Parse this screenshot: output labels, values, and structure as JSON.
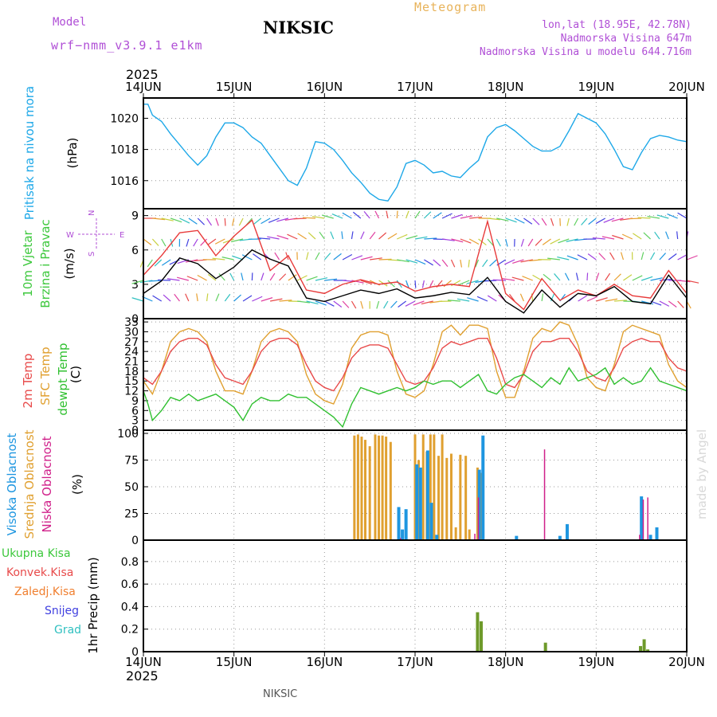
{
  "header": {
    "model_label": "Model",
    "model_name": "wrf−nmm_v3.9.1 e1km",
    "station": "NIKSIC",
    "meteogram_title": "Meteogram",
    "lonlat": "lon,lat (18.95E, 42.78N)",
    "elevation": "Nadmorska Visina 647m",
    "model_elevation": "Nadmorska Visina u modelu 644.716m",
    "year_top": "2025",
    "year_bottom": "2025",
    "footer_station": "NIKSIC",
    "watermark": "made by Angel"
  },
  "colors": {
    "pressure": "#1ea8e8",
    "wind_speed": "#000000",
    "wind_gust": "#e83a3a",
    "temp_2m": "#e84a4a",
    "temp_sfc": "#e0a030",
    "dewpoint": "#30c030",
    "cloud_high": "#1e96e0",
    "cloud_mid": "#e0a030",
    "cloud_low": "#d0208a",
    "precip_total": "#3cc83c",
    "precip_conv": "#e84a4a",
    "precip_strat": "#f07f2f",
    "snow": "#4040e0",
    "hail": "#30c0c0",
    "compass": "#b04fd6"
  },
  "chart_data": [
    {
      "type": "line",
      "panel": "pressure",
      "ylabel_lines": [
        "Pritisak na nivou mora",
        "(hPa)"
      ],
      "x_ticks": [
        "14JUN",
        "15JUN",
        "16JUN",
        "17JUN",
        "18JUN",
        "19JUN",
        "20JUN"
      ],
      "ylim": [
        1014.2,
        1021.3
      ],
      "y_ticks": [
        1016,
        1018,
        1020
      ],
      "grid": true,
      "series": [
        {
          "name": "Pritisak na nivou mora",
          "x": [
            0,
            0.05,
            0.1,
            0.2,
            0.3,
            0.4,
            0.5,
            0.6,
            0.7,
            0.8,
            0.9,
            1.0,
            1.1,
            1.2,
            1.3,
            1.4,
            1.5,
            1.6,
            1.7,
            1.8,
            1.9,
            2.0,
            2.1,
            2.2,
            2.3,
            2.4,
            2.5,
            2.6,
            2.7,
            2.8,
            2.9,
            3.0,
            3.1,
            3.2,
            3.3,
            3.4,
            3.5,
            3.6,
            3.7,
            3.8,
            3.9,
            4.0,
            4.1,
            4.2,
            4.3,
            4.4,
            4.5,
            4.6,
            4.7,
            4.8,
            4.9,
            5.0,
            5.1,
            5.2,
            5.3,
            5.4,
            5.5,
            5.6,
            5.7,
            5.8,
            5.9,
            6.0
          ],
          "y": [
            1020.9,
            1020.9,
            1020.2,
            1019.8,
            1019.0,
            1018.3,
            1017.6,
            1017.0,
            1017.6,
            1018.8,
            1019.7,
            1019.7,
            1019.4,
            1018.8,
            1018.4,
            1017.6,
            1016.8,
            1016.0,
            1015.7,
            1016.8,
            1018.5,
            1018.4,
            1018.0,
            1017.3,
            1016.5,
            1015.9,
            1015.2,
            1014.8,
            1014.7,
            1015.6,
            1017.1,
            1017.3,
            1017.0,
            1016.5,
            1016.6,
            1016.3,
            1016.2,
            1016.8,
            1017.3,
            1018.8,
            1019.4,
            1019.6,
            1019.2,
            1018.7,
            1018.2,
            1017.9,
            1017.9,
            1018.2,
            1019.2,
            1020.3,
            1020.0,
            1019.7,
            1019.0,
            1018.0,
            1016.9,
            1016.7,
            1017.8,
            1018.7,
            1018.9,
            1018.8,
            1018.6,
            1018.5
          ]
        }
      ]
    },
    {
      "type": "line",
      "panel": "wind",
      "ylabel_lines": [
        "10m Vjetar",
        "Brzina i Pravac",
        "(m/s)"
      ],
      "compass": {
        "north": "N",
        "south": "S",
        "west": "W",
        "east": "E"
      },
      "ylim": [
        0,
        9.6
      ],
      "y_ticks": [
        0,
        3,
        6,
        9
      ],
      "grid": true,
      "series": [
        {
          "name": "speed",
          "x": [
            0,
            0.2,
            0.4,
            0.6,
            0.8,
            1.0,
            1.2,
            1.4,
            1.6,
            1.8,
            2.0,
            2.2,
            2.4,
            2.6,
            2.8,
            3.0,
            3.2,
            3.4,
            3.6,
            3.8,
            4.0,
            4.2,
            4.4,
            4.6,
            4.8,
            5.0,
            5.2,
            5.4,
            5.6,
            5.8,
            6.0
          ],
          "y": [
            2.2,
            3.3,
            5.3,
            4.8,
            3.5,
            4.5,
            6.0,
            5.2,
            4.6,
            1.8,
            1.5,
            2.0,
            2.5,
            2.2,
            2.6,
            1.8,
            2.0,
            2.3,
            2.1,
            3.6,
            1.5,
            0.5,
            2.5,
            1.0,
            2.2,
            2.0,
            2.8,
            1.5,
            1.3,
            3.8,
            1.8
          ]
        },
        {
          "name": "gust",
          "x": [
            0,
            0.2,
            0.4,
            0.6,
            0.8,
            1.0,
            1.2,
            1.4,
            1.6,
            1.8,
            2.0,
            2.2,
            2.4,
            2.6,
            2.8,
            3.0,
            3.2,
            3.4,
            3.6,
            3.8,
            4.0,
            4.2,
            4.4,
            4.6,
            4.8,
            5.0,
            5.2,
            5.4,
            5.6,
            5.8,
            6.0
          ],
          "y": [
            3.8,
            5.5,
            7.5,
            7.7,
            5.5,
            7.2,
            8.6,
            4.2,
            5.5,
            2.5,
            2.2,
            3.0,
            3.4,
            3.0,
            3.2,
            2.4,
            2.8,
            3.0,
            2.8,
            8.5,
            2.2,
            0.8,
            3.5,
            1.6,
            2.5,
            2.0,
            3.0,
            2.0,
            1.8,
            4.2,
            2.2
          ]
        }
      ]
    },
    {
      "type": "line",
      "panel": "temperature",
      "ylabel_lines": [
        "2m Temp",
        "SFC Temp",
        "dewpt Temp",
        "(C)"
      ],
      "ylim": [
        0,
        34
      ],
      "y_ticks": [
        0,
        3,
        6,
        9,
        12,
        15,
        18,
        21,
        24,
        27,
        30,
        33
      ],
      "grid": true,
      "series": [
        {
          "name": "2m Temp",
          "x": [
            0,
            0.1,
            0.2,
            0.3,
            0.4,
            0.5,
            0.6,
            0.7,
            0.8,
            0.9,
            1.0,
            1.1,
            1.2,
            1.3,
            1.4,
            1.5,
            1.6,
            1.7,
            1.8,
            1.9,
            2.0,
            2.1,
            2.2,
            2.3,
            2.4,
            2.5,
            2.6,
            2.7,
            2.8,
            2.9,
            3.0,
            3.1,
            3.2,
            3.3,
            3.4,
            3.5,
            3.6,
            3.7,
            3.8,
            3.9,
            4.0,
            4.1,
            4.2,
            4.3,
            4.4,
            4.5,
            4.6,
            4.7,
            4.8,
            4.9,
            5.0,
            5.1,
            5.2,
            5.3,
            5.4,
            5.5,
            5.6,
            5.7,
            5.8,
            5.9,
            6.0
          ],
          "y": [
            16,
            14,
            18,
            24,
            27,
            28,
            28,
            26,
            20,
            16,
            15,
            14,
            18,
            24,
            27,
            28,
            28,
            26,
            20,
            15,
            13,
            12,
            16,
            22,
            25,
            26,
            26,
            25,
            20,
            15,
            14,
            15,
            19,
            25,
            27,
            26,
            27,
            28,
            28,
            22,
            14,
            13,
            17,
            24,
            27,
            27,
            28,
            28,
            24,
            18,
            16,
            15,
            19,
            25,
            27,
            28,
            27,
            27,
            22,
            19,
            18
          ]
        },
        {
          "name": "SFC Temp",
          "x": [
            0,
            0.1,
            0.2,
            0.3,
            0.4,
            0.5,
            0.6,
            0.7,
            0.8,
            0.9,
            1.0,
            1.1,
            1.2,
            1.3,
            1.4,
            1.5,
            1.6,
            1.7,
            1.8,
            1.9,
            2.0,
            2.1,
            2.2,
            2.3,
            2.4,
            2.5,
            2.6,
            2.7,
            2.8,
            2.9,
            3.0,
            3.1,
            3.2,
            3.3,
            3.4,
            3.5,
            3.6,
            3.7,
            3.8,
            3.9,
            4.0,
            4.1,
            4.2,
            4.3,
            4.4,
            4.5,
            4.6,
            4.7,
            4.8,
            4.9,
            5.0,
            5.1,
            5.2,
            5.3,
            5.4,
            5.5,
            5.6,
            5.7,
            5.8,
            5.9,
            6.0
          ],
          "y": [
            15,
            11,
            18,
            27,
            30,
            31,
            30,
            27,
            18,
            12,
            12,
            11,
            18,
            27,
            30,
            31,
            30,
            27,
            17,
            11,
            9,
            8,
            14,
            25,
            29,
            30,
            30,
            29,
            18,
            11,
            10,
            12,
            20,
            30,
            32,
            29,
            32,
            32,
            31,
            18,
            10,
            10,
            18,
            28,
            31,
            30,
            33,
            32,
            26,
            16,
            13,
            12,
            20,
            30,
            32,
            31,
            30,
            29,
            20,
            15,
            13
          ]
        },
        {
          "name": "dewpt Temp",
          "x": [
            0,
            0.05,
            0.1,
            0.2,
            0.3,
            0.4,
            0.5,
            0.6,
            0.7,
            0.8,
            0.9,
            1.0,
            1.1,
            1.2,
            1.3,
            1.4,
            1.5,
            1.6,
            1.7,
            1.8,
            1.9,
            2.0,
            2.1,
            2.2,
            2.3,
            2.4,
            2.5,
            2.6,
            2.7,
            2.8,
            2.9,
            3.0,
            3.1,
            3.2,
            3.3,
            3.4,
            3.5,
            3.6,
            3.7,
            3.8,
            3.9,
            4.0,
            4.1,
            4.2,
            4.3,
            4.4,
            4.5,
            4.6,
            4.7,
            4.8,
            4.9,
            5.0,
            5.1,
            5.2,
            5.3,
            5.4,
            5.5,
            5.6,
            5.7,
            5.8,
            5.9,
            6.0
          ],
          "y": [
            12,
            8,
            3,
            6,
            10,
            9,
            11,
            9,
            10,
            11,
            9,
            7,
            3,
            8,
            10,
            9,
            9,
            11,
            10,
            10,
            8,
            6,
            4,
            1,
            8,
            13,
            12,
            11,
            12,
            13,
            12,
            13,
            15,
            14,
            15,
            15,
            13,
            15,
            17,
            12,
            11,
            14,
            16,
            17,
            15,
            13,
            16,
            14,
            19,
            15,
            16,
            17,
            19,
            14,
            16,
            14,
            15,
            19,
            15,
            14,
            13,
            12
          ]
        }
      ]
    },
    {
      "type": "bar",
      "panel": "clouds",
      "ylabel_lines": [
        "Visoka Oblacnost",
        "Srednja Oblacnost",
        "Niska Oblacnost",
        "(%)"
      ],
      "ylim": [
        0,
        103
      ],
      "y_ticks": [
        0,
        25,
        50,
        75,
        100
      ],
      "grid": true,
      "series": [
        {
          "name": "Srednja Oblacnost",
          "x": [
            2.33,
            2.37,
            2.41,
            2.45,
            2.5,
            2.56,
            2.6,
            2.64,
            2.68,
            2.73,
            3.0,
            3.04,
            3.09,
            3.13,
            3.17,
            3.21,
            3.26,
            3.3,
            3.35,
            3.4,
            3.45,
            3.5,
            3.56,
            3.6,
            3.69,
            3.73
          ],
          "values": [
            98,
            99,
            97,
            94,
            88,
            99,
            98,
            98,
            97,
            92,
            99,
            75,
            99,
            83,
            99,
            99,
            79,
            99,
            77,
            81,
            12,
            80,
            79,
            10,
            68,
            63
          ]
        },
        {
          "name": "Visoka Oblacnost",
          "x": [
            2.82,
            2.86,
            2.9,
            3.02,
            3.06,
            3.14,
            3.18,
            3.24,
            3.71,
            3.75,
            4.12,
            4.6,
            4.68,
            5.5,
            5.6,
            5.67
          ],
          "values": [
            31,
            10,
            29,
            71,
            68,
            84,
            35,
            5,
            66,
            98,
            4,
            4,
            15,
            41,
            5,
            12
          ]
        },
        {
          "name": "Niska Oblacnost",
          "x": [
            2.84,
            3.66,
            3.7,
            4.43,
            5.48,
            5.52,
            5.57
          ],
          "values": [
            2,
            6,
            40,
            85,
            5,
            38,
            40
          ]
        }
      ]
    },
    {
      "type": "bar",
      "panel": "precip",
      "ylabel_lines": [
        "1hr Precip (mm)"
      ],
      "legend": [
        "Ukupna Kisa",
        "Konvek.Kisa",
        "Zaledj.Kisa",
        "Snijeg",
        "Grad"
      ],
      "ylim": [
        0,
        0.99
      ],
      "y_ticks": [
        0,
        0.2,
        0.4,
        0.6,
        0.8
      ],
      "grid": true,
      "series": [
        {
          "name": "Ukupna Kisa",
          "x": [
            3.69,
            3.73,
            4.44,
            5.49,
            5.53,
            5.57
          ],
          "values": [
            0.35,
            0.27,
            0.08,
            0.05,
            0.11,
            0.02
          ]
        }
      ]
    }
  ]
}
